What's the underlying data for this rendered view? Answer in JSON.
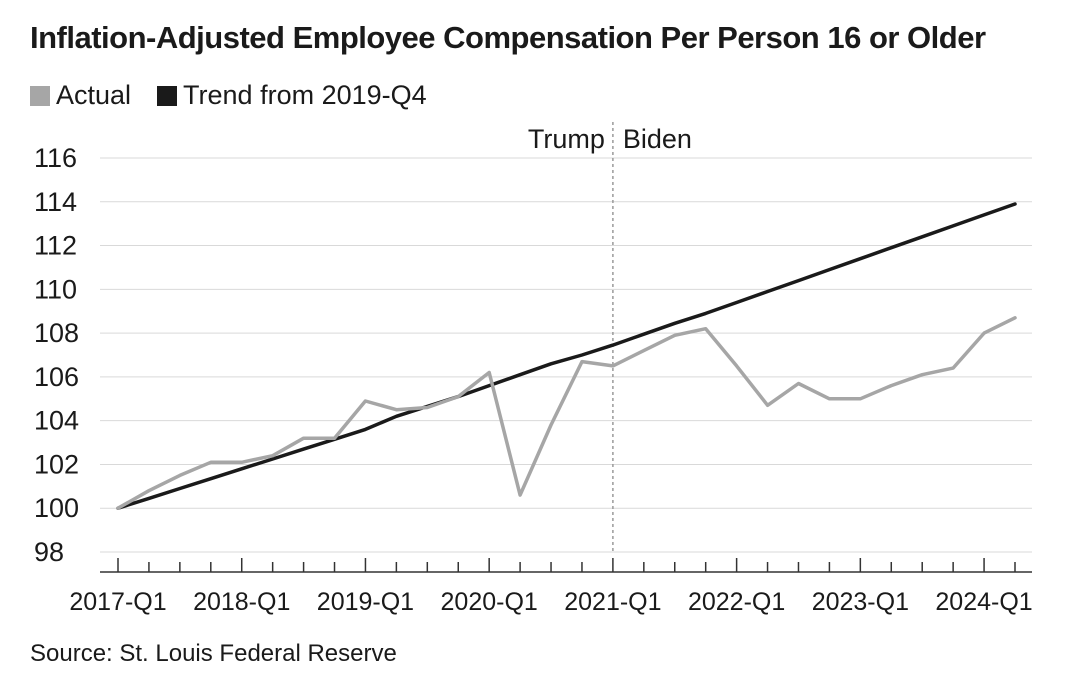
{
  "title": "Inflation-Adjusted Employee Compensation Per Person 16 or Older",
  "source": "Source: St. Louis Federal Reserve",
  "colors": {
    "actual": "#a6a6a6",
    "trend": "#1a1a1a",
    "grid": "#d9d9d9",
    "divider": "#9a9a9a"
  },
  "chart_data": {
    "type": "line",
    "title": "Inflation-Adjusted Employee Compensation Per Person 16 or Older",
    "xlabel": "",
    "ylabel": "",
    "ylim": [
      98,
      116
    ],
    "yticks": [
      98,
      100,
      102,
      104,
      106,
      108,
      110,
      112,
      114,
      116
    ],
    "grid": true,
    "legend_position": "top-left",
    "x": [
      "2017-Q1",
      "2017-Q2",
      "2017-Q3",
      "2017-Q4",
      "2018-Q1",
      "2018-Q2",
      "2018-Q3",
      "2018-Q4",
      "2019-Q1",
      "2019-Q2",
      "2019-Q3",
      "2019-Q4",
      "2020-Q1",
      "2020-Q2",
      "2020-Q3",
      "2020-Q4",
      "2021-Q1",
      "2021-Q2",
      "2021-Q3",
      "2021-Q4",
      "2022-Q1",
      "2022-Q2",
      "2022-Q3",
      "2022-Q4",
      "2023-Q1",
      "2023-Q2",
      "2023-Q3",
      "2023-Q4",
      "2024-Q1",
      "2024-Q2"
    ],
    "x_tick_labels": [
      "2017-Q1",
      "2018-Q1",
      "2019-Q1",
      "2020-Q1",
      "2021-Q1",
      "2022-Q1",
      "2023-Q1",
      "2024-Q1"
    ],
    "series": [
      {
        "name": "Actual",
        "values": [
          100.0,
          100.8,
          101.5,
          102.1,
          102.1,
          102.4,
          103.2,
          103.2,
          104.9,
          104.5,
          104.6,
          105.1,
          106.2,
          100.6,
          103.8,
          106.7,
          106.5,
          107.2,
          107.9,
          108.2,
          106.5,
          104.7,
          105.7,
          105.0,
          105.0,
          105.6,
          106.1,
          106.4,
          108.0,
          108.7
        ]
      },
      {
        "name": "Trend from 2019-Q4",
        "values": [
          100.0,
          100.45,
          100.9,
          101.35,
          101.8,
          102.25,
          102.7,
          103.15,
          103.6,
          104.2,
          104.65,
          105.1,
          105.6,
          106.1,
          106.6,
          107.0,
          107.45,
          107.95,
          108.45,
          108.9,
          109.4,
          109.9,
          110.4,
          110.9,
          111.4,
          111.9,
          112.4,
          112.9,
          113.4,
          113.9
        ]
      }
    ],
    "annotations": [
      {
        "text": "Trump",
        "position": "left of divider"
      },
      {
        "text": "Biden",
        "position": "right of divider"
      }
    ],
    "divider_at": "2021-Q1"
  }
}
